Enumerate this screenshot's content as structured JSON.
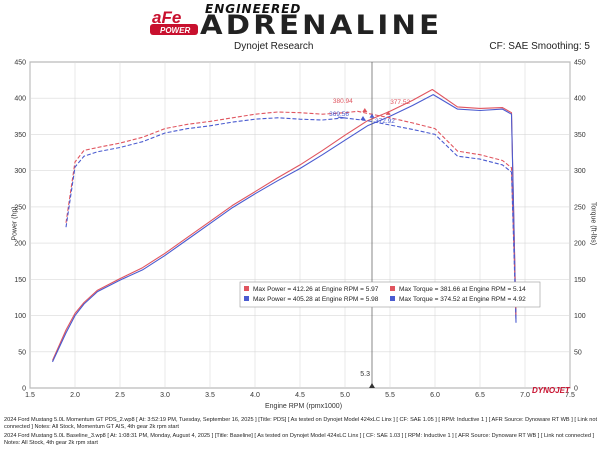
{
  "header": {
    "brand_afe": "aFe",
    "brand_power": "POWER",
    "brand_engineered": "ENGINEERED",
    "brand_adrenaline": "ADRENALINE",
    "left": "Dynojet Research",
    "right": "CF: SAE Smoothing: 5",
    "dynojet": "DYNOJET"
  },
  "chart_data": {
    "type": "line",
    "xlabel": "Engine RPM (rpmx1000)",
    "ylabel": "Power (hp)",
    "y2label": "Torque (ft-lbs)",
    "xlim": [
      1.5,
      7.5
    ],
    "ylim": [
      0,
      450
    ],
    "xticks": [
      "1.5",
      "2.0",
      "2.5",
      "3.0",
      "3.5",
      "4.0",
      "4.5",
      "5.0",
      "5.5",
      "6.0",
      "6.5",
      "7.0",
      "7.5"
    ],
    "yticks": [
      "0",
      "50",
      "100",
      "150",
      "200",
      "250",
      "300",
      "350",
      "400",
      "450"
    ],
    "grid": true,
    "cursor_rpm": 5.3,
    "cursor_label": "5.3",
    "series": [
      {
        "name": "Power",
        "run": "2024 Ford Mustang 5.0L Momentum GT PDS_2.wp8",
        "color": "#e0555f",
        "dash": false,
        "x": [
          1.75,
          1.9,
          2.0,
          2.1,
          2.25,
          2.5,
          2.75,
          3.0,
          3.25,
          3.5,
          3.75,
          4.0,
          4.25,
          4.5,
          4.75,
          5.0,
          5.25,
          5.5,
          5.75,
          5.97,
          6.25,
          6.5,
          6.75,
          6.85,
          6.9
        ],
        "y": [
          38,
          80,
          103,
          118,
          135,
          151,
          166,
          186,
          208,
          230,
          252,
          271,
          290,
          308,
          328,
          349,
          369,
          382,
          397,
          412,
          388,
          386,
          387,
          380,
          95
        ]
      },
      {
        "name": "Power",
        "run": "2024 Ford Mustang 5.0L Baseline_3.wp8",
        "color": "#4a5bd0",
        "dash": false,
        "x": [
          1.75,
          1.9,
          2.0,
          2.1,
          2.25,
          2.5,
          2.75,
          3.0,
          3.25,
          3.5,
          3.75,
          4.0,
          4.25,
          4.5,
          4.75,
          5.0,
          5.25,
          5.5,
          5.75,
          5.98,
          6.25,
          6.5,
          6.75,
          6.85,
          6.9
        ],
        "y": [
          36,
          76,
          100,
          116,
          133,
          149,
          163,
          183,
          205,
          227,
          249,
          268,
          286,
          303,
          322,
          342,
          362,
          375,
          390,
          405,
          385,
          383,
          385,
          378,
          90
        ]
      },
      {
        "name": "Torque",
        "run": "2024 Ford Mustang 5.0L Momentum GT PDS_2.wp8",
        "color": "#e0555f",
        "dash": true,
        "x": [
          1.9,
          2.0,
          2.1,
          2.25,
          2.5,
          2.75,
          3.0,
          3.25,
          3.5,
          3.75,
          4.0,
          4.25,
          4.5,
          4.75,
          5.0,
          5.14,
          5.25,
          5.5,
          5.75,
          6.0,
          6.25,
          6.5,
          6.75,
          6.85,
          6.9
        ],
        "y": [
          228,
          312,
          328,
          332,
          338,
          346,
          358,
          364,
          368,
          373,
          378,
          381,
          380,
          378,
          380,
          382,
          379,
          373,
          366,
          358,
          327,
          322,
          314,
          304,
          101
        ]
      },
      {
        "name": "Torque",
        "run": "2024 Ford Mustang 5.0L Baseline_3.wp8",
        "color": "#4a5bd0",
        "dash": true,
        "x": [
          1.9,
          2.0,
          2.1,
          2.25,
          2.5,
          2.75,
          3.0,
          3.25,
          3.5,
          3.75,
          4.0,
          4.25,
          4.5,
          4.75,
          5.0,
          4.92,
          5.25,
          5.5,
          5.75,
          6.0,
          6.25,
          6.5,
          6.75,
          6.85,
          6.9
        ],
        "y": [
          222,
          305,
          320,
          326,
          332,
          340,
          352,
          358,
          362,
          367,
          371,
          373,
          371,
          370,
          373,
          374,
          369,
          363,
          357,
          350,
          320,
          316,
          308,
          298,
          95
        ]
      }
    ],
    "annotations": [
      {
        "text": "380.94",
        "x": 5.22,
        "y": 381,
        "color": "#e0555f"
      },
      {
        "text": "377.52",
        "x": 5.48,
        "y": 377,
        "color": "#e0555f"
      },
      {
        "text": "369.56",
        "x": 5.2,
        "y": 370,
        "color": "#4a5bd0"
      },
      {
        "text": "372.92",
        "x": 5.3,
        "y": 373,
        "color": "#4a5bd0"
      }
    ],
    "legend": {
      "placement": "center-right",
      "rows": [
        {
          "color": "#e0555f",
          "power": "Max Power = 412.26 at Engine RPM = 5.97",
          "torque": "Max Torque = 381.66 at Engine RPM = 5.14"
        },
        {
          "color": "#4a5bd0",
          "power": "Max Power = 405.28 at Engine RPM = 5.98",
          "torque": "Max Torque = 374.52 at Engine RPM = 4.92"
        }
      ]
    }
  },
  "footer": {
    "run1": "2024 Ford Mustang 5.0L Momentum GT PDS_2.wp8 [ At: 3:52:19 PM, Tuesday, September 16, 2025 ] [Title: PDS] [ As tested on Dynojet Model 424xLC Linx ] [ CF: SAE 1.05 ] [ RPM: Inductive 1 ] [ AFR Source: Dynoware RT WB ] [ Link not connected ] Notes: All Stock, Momentum GT AIS, 4th gear 2k rpm start",
    "run2": "2024 Ford Mustang 5.0L Baseline_3.wp8 [ At: 1:08:31 PM, Monday, August 4, 2025 ] [Title: Baseline] [ As tested on Dynojet Model 424xLC Linx ] [ CF: SAE 1.03 ] [ RPM: Inductive 1 ] [ AFR Source: Dynoware RT WB ] [ Link not connected ] Notes: All Stock, 4th gear 2k rpm start"
  }
}
